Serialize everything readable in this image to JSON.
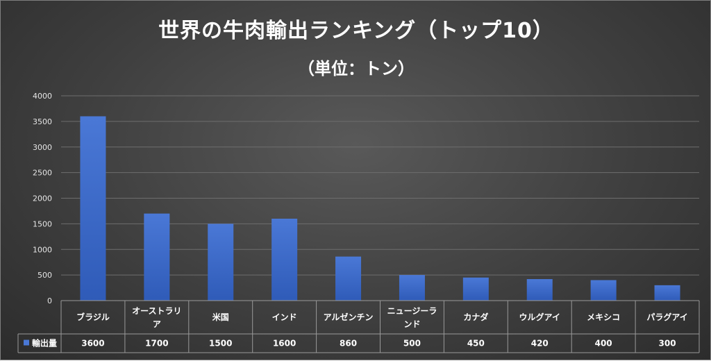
{
  "chart_data": {
    "type": "bar",
    "title": "世界の牛肉輸出ランキング（トップ10）",
    "subtitle": "（単位：トン）",
    "categories": [
      [
        "ブラジル"
      ],
      [
        "オーストラリ",
        "ア"
      ],
      [
        "米国"
      ],
      [
        "インド"
      ],
      [
        "アルゼンチン"
      ],
      [
        "ニュージーラ",
        "ンド"
      ],
      [
        "カナダ"
      ],
      [
        "ウルグアイ"
      ],
      [
        "メキシコ"
      ],
      [
        "パラグアイ"
      ]
    ],
    "series": [
      {
        "name": "輸出量",
        "values": [
          3600,
          1700,
          1500,
          1600,
          860,
          500,
          450,
          420,
          400,
          300
        ]
      }
    ],
    "ylim": [
      0,
      4000
    ],
    "yticks": [
      0,
      500,
      1000,
      1500,
      2000,
      2500,
      3000,
      3500,
      4000
    ],
    "grid": true,
    "legend": "data-table",
    "colors": {
      "bar_top": "#4a78d6",
      "bar_bottom": "#2f5bb8",
      "grid": "#6e6e6e",
      "table_line": "#9a9a9a"
    }
  }
}
